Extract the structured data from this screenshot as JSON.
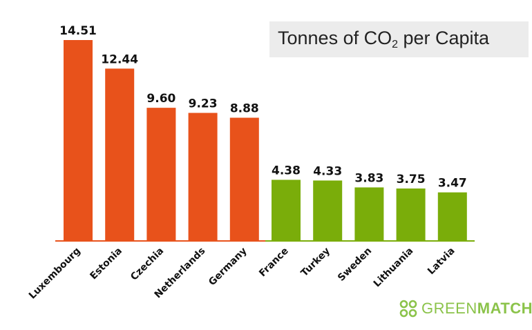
{
  "chart_data": {
    "type": "bar",
    "title_main": "Tonnes of CO",
    "title_sub": "2",
    "title_rest": " per Capita",
    "categories": [
      "Luxembourg",
      "Estonia",
      "Czechia",
      "Netherlands",
      "Germany",
      "France",
      "Turkey",
      "Sweden",
      "Lithuania",
      "Latvia"
    ],
    "values": [
      14.51,
      12.44,
      9.6,
      9.23,
      8.88,
      4.38,
      4.33,
      3.83,
      3.75,
      3.47
    ],
    "value_labels": [
      "14.51",
      "12.44",
      "9.60",
      "9.23",
      "8.88",
      "4.38",
      "4.33",
      "3.83",
      "3.75",
      "3.47"
    ],
    "bar_colors": [
      "#e8521b",
      "#e8521b",
      "#e8521b",
      "#e8521b",
      "#e8521b",
      "#7aad0a",
      "#7aad0a",
      "#7aad0a",
      "#7aad0a",
      "#7aad0a"
    ],
    "ylim": [
      0,
      14.51
    ],
    "grid": false
  },
  "brand": {
    "logo_part1": "GREEN",
    "logo_part2": "MATCH",
    "logo_color": "#8bc34a"
  }
}
